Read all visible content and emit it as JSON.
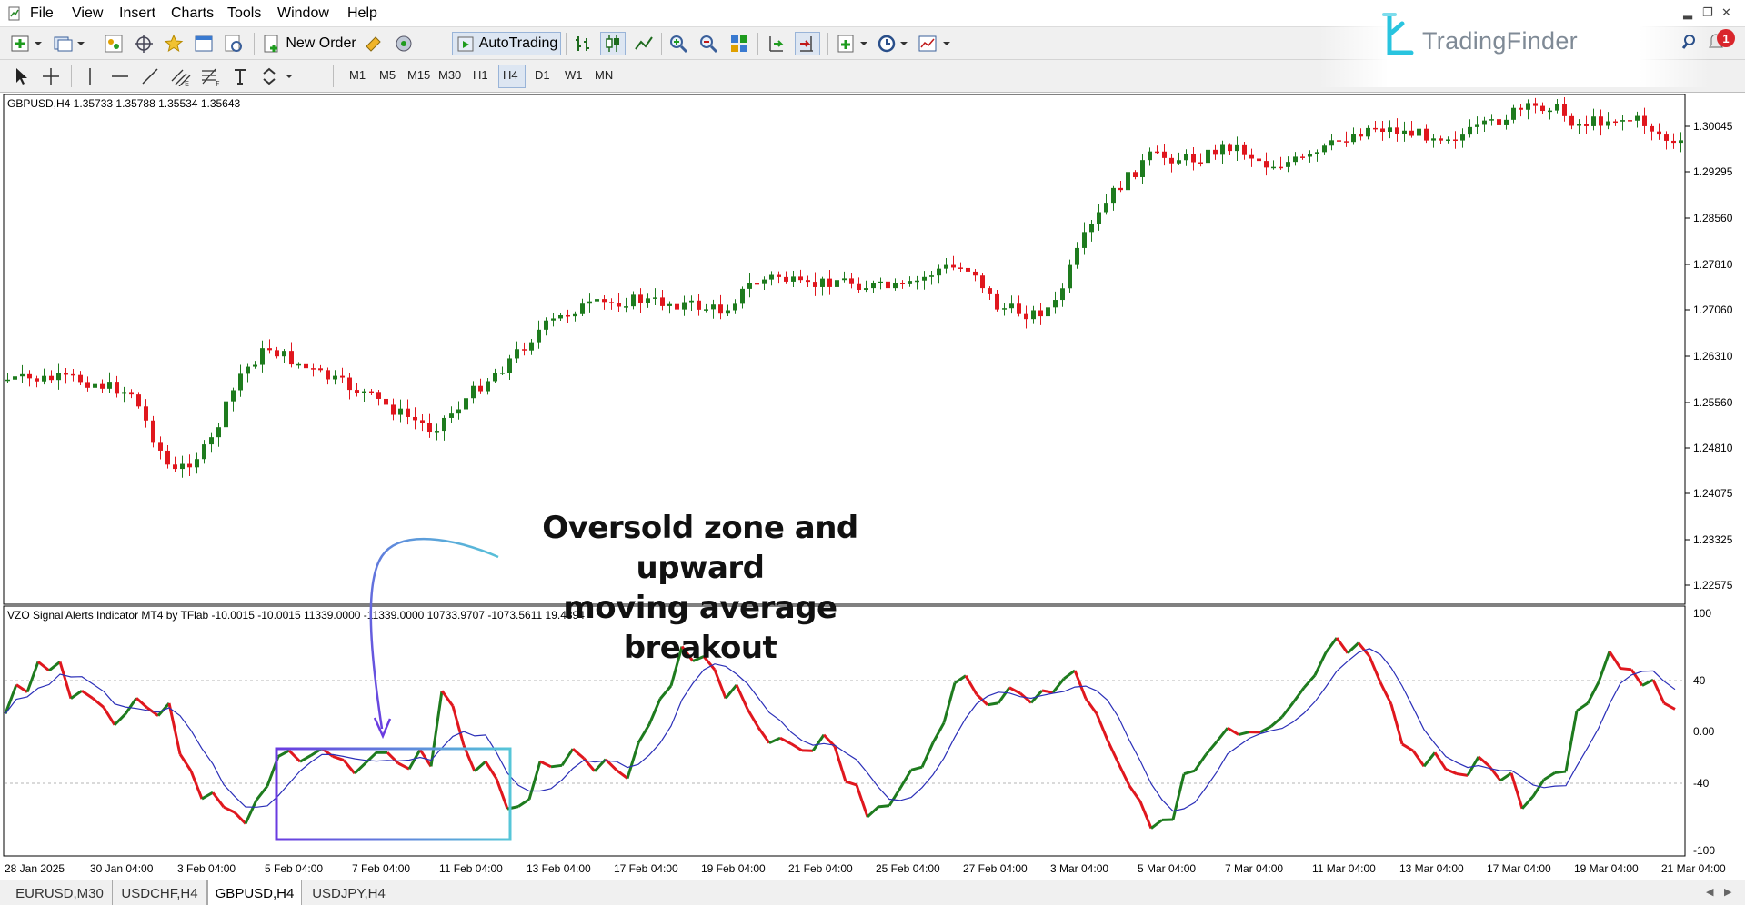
{
  "menu": [
    "File",
    "View",
    "Insert",
    "Charts",
    "Tools",
    "Window",
    "Help"
  ],
  "toolbar": {
    "new_order_label": "New Order",
    "autotrading_label": "AutoTrading",
    "timeframes": [
      "M1",
      "M5",
      "M15",
      "M30",
      "H1",
      "H4",
      "D1",
      "W1",
      "MN"
    ],
    "active_timeframe": "H4"
  },
  "brand": {
    "name": "TradingFinder",
    "color": "#29c4df"
  },
  "notification_count": "1",
  "main_chart": {
    "header": "GBPUSD,H4  1.35733 1.35788 1.35534 1.35643",
    "price_labels": [
      "1.30045",
      "1.29295",
      "1.28560",
      "1.27810",
      "1.27060",
      "1.26310",
      "1.25560",
      "1.24810",
      "1.24075",
      "1.23325",
      "1.22575"
    ]
  },
  "indicator": {
    "header": "VZO Signal Alerts Indicator MT4 by TFlab -10.0015 -10.0015 11339.0000 -11339.0000 10733.9707 -1073.5611 19.4394",
    "level_labels": [
      "100",
      "40",
      "0.00",
      "-40",
      "-100"
    ]
  },
  "time_labels": [
    "28 Jan 2025",
    "30 Jan 04:00",
    "3 Feb 04:00",
    "5 Feb 04:00",
    "7 Feb 04:00",
    "11 Feb 04:00",
    "13 Feb 04:00",
    "17 Feb 04:00",
    "19 Feb 04:00",
    "21 Feb 04:00",
    "25 Feb 04:00",
    "27 Feb 04:00",
    "3 Mar 04:00",
    "5 Mar 04:00",
    "7 Mar 04:00",
    "11 Mar 04:00",
    "13 Mar 04:00",
    "17 Mar 04:00",
    "19 Mar 04:00",
    "21 Mar 04:00"
  ],
  "annotation": {
    "line1": "Oversold zone and upward",
    "line2": "moving average breakout"
  },
  "tabs": [
    "EURUSD,M30",
    "USDCHF,H4",
    "GBPUSD,H4",
    "USDJPY,H4"
  ],
  "active_tab": "GBPUSD,H4",
  "colors": {
    "bull": "#1e7b1e",
    "bear": "#e0171e",
    "ma": "#2b2fb8",
    "box_left": "#6a3be0",
    "box_right": "#56c6d8"
  }
}
